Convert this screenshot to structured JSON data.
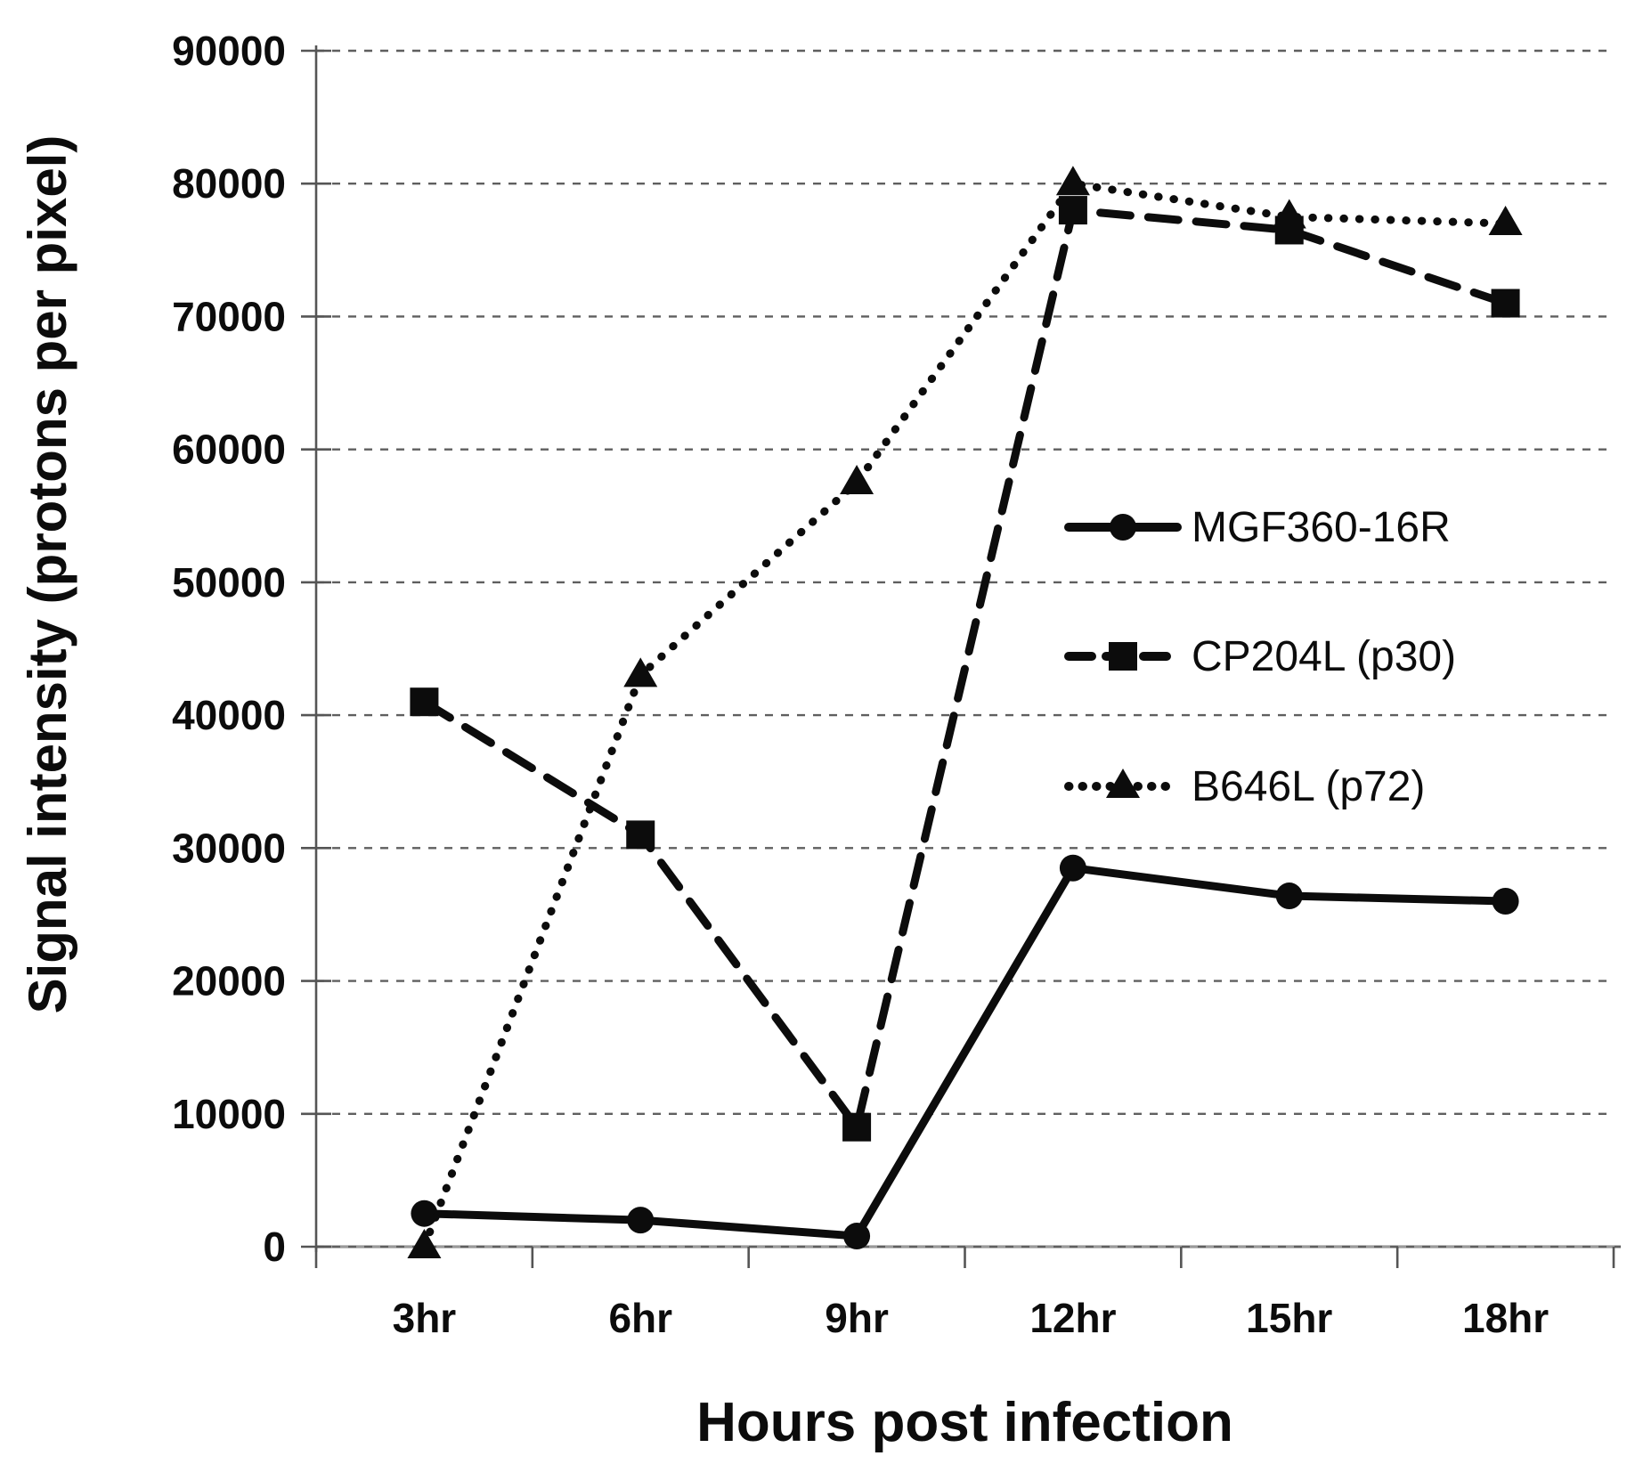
{
  "figure": {
    "kind": "scientific line chart"
  },
  "chart_data": {
    "type": "line",
    "title": "",
    "xlabel": "Hours post infection",
    "ylabel": "Signal intensity (protons per pixel)",
    "categories": [
      "3hr",
      "6hr",
      "9hr",
      "12hr",
      "15hr",
      "18hr"
    ],
    "series": [
      {
        "name": "MGF360-16R",
        "line": "solid",
        "marker": "circle",
        "values": [
          2500,
          2000,
          800,
          28500,
          26400,
          26000
        ]
      },
      {
        "name": "CP204L (p30)",
        "line": "dashed",
        "marker": "square",
        "values": [
          41000,
          31000,
          9000,
          78000,
          76500,
          71000
        ]
      },
      {
        "name": "B646L (p72)",
        "line": "dotted",
        "marker": "triangle",
        "values": [
          0,
          43000,
          57500,
          80000,
          77500,
          77000
        ]
      }
    ],
    "ylim": [
      0,
      90000
    ],
    "ytick_step": 10000,
    "ytick_labels": [
      "0",
      "10000",
      "20000",
      "30000",
      "40000",
      "50000",
      "60000",
      "70000",
      "80000",
      "90000"
    ],
    "grid": "horizontal dashed",
    "legend_position": "center-right",
    "legend_order": [
      "MGF360-16R",
      "CP204L (p30)",
      "B646L (p72)"
    ],
    "colors": {
      "series": "#0c0c0c",
      "grid": "#5f5f5f",
      "axis": "#999999",
      "tick": "#555555",
      "text": "#0c0c0c",
      "background": "#ffffff"
    }
  }
}
